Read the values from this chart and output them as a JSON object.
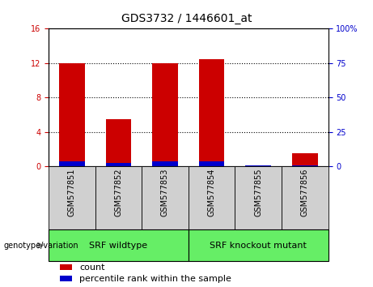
{
  "title": "GDS3732 / 1446601_at",
  "samples": [
    "GSM577851",
    "GSM577852",
    "GSM577853",
    "GSM577854",
    "GSM577855",
    "GSM577856"
  ],
  "count_values": [
    12.0,
    5.5,
    12.0,
    12.5,
    0.0,
    1.5
  ],
  "percentile_values": [
    3.6,
    2.5,
    3.9,
    3.9,
    0.9,
    0.6
  ],
  "left_ylim": [
    0,
    16
  ],
  "right_ylim": [
    0,
    100
  ],
  "left_yticks": [
    0,
    4,
    8,
    12,
    16
  ],
  "right_yticks": [
    0,
    25,
    50,
    75,
    100
  ],
  "right_yticklabels": [
    "0",
    "25",
    "50",
    "75",
    "100%"
  ],
  "count_color": "#cc0000",
  "percentile_color": "#0000cc",
  "group1_label": "SRF wildtype",
  "group2_label": "SRF knockout mutant",
  "group_bg_color": "#66ee66",
  "sample_box_color": "#d0d0d0",
  "genotype_label": "genotype/variation",
  "legend_count": "count",
  "legend_percentile": "percentile rank within the sample",
  "title_fontsize": 10,
  "tick_fontsize": 7,
  "group_fontsize": 8,
  "legend_fontsize": 8
}
